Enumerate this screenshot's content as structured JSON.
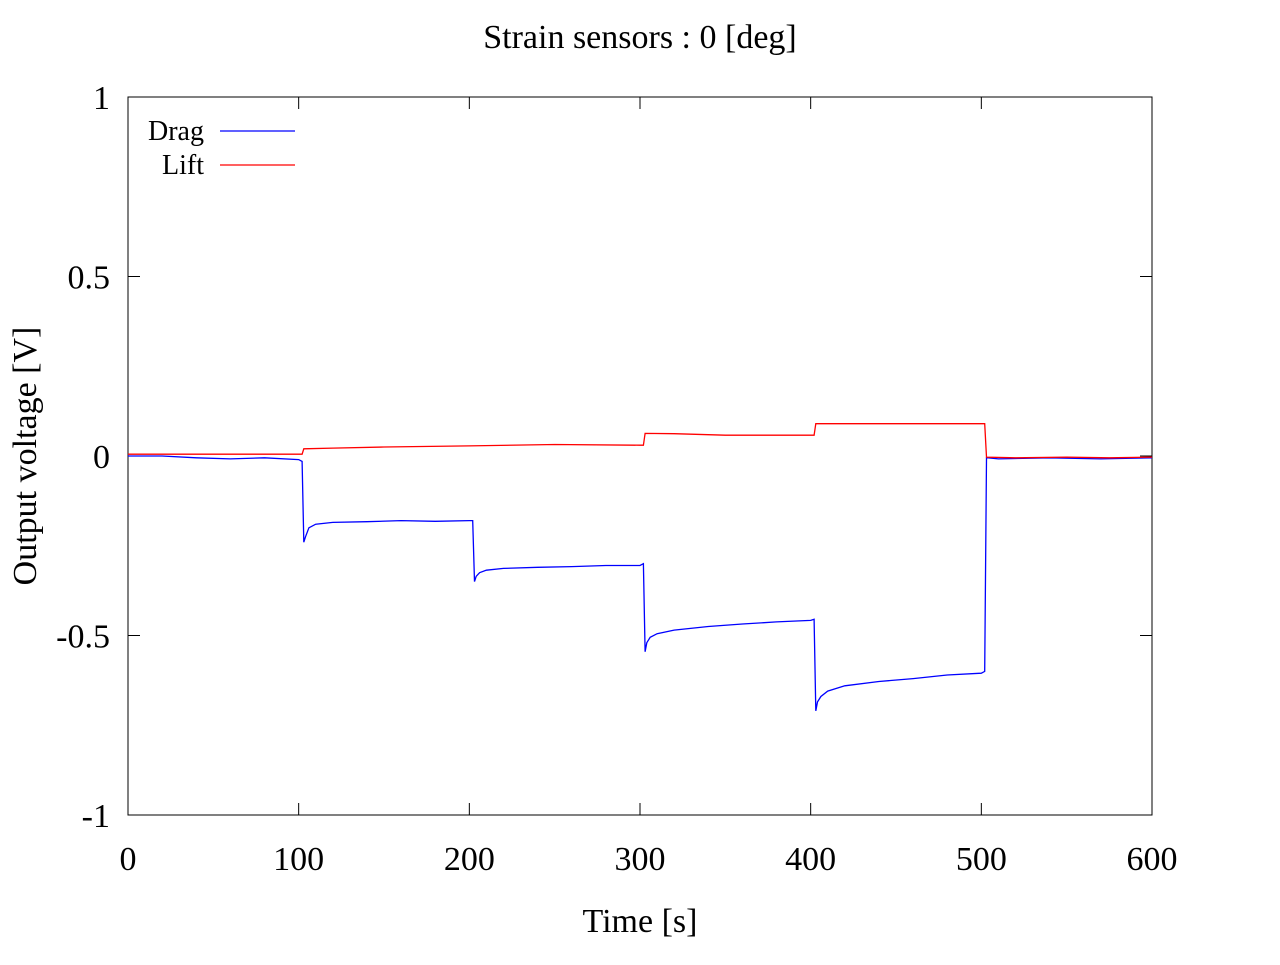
{
  "chart_data": {
    "type": "line",
    "title": "Strain sensors : 0 [deg]",
    "xlabel": "Time [s]",
    "ylabel": "Output voltage [V]",
    "xlim": [
      0,
      600
    ],
    "ylim": [
      -1,
      1
    ],
    "xticks": [
      "0",
      "100",
      "200",
      "300",
      "400",
      "500",
      "600"
    ],
    "yticks": [
      "1",
      "0.5",
      "0",
      "-0.5",
      "-1"
    ],
    "grid": false,
    "legend_position": "top-left",
    "series": [
      {
        "name": "Drag",
        "color": "#0000ff",
        "x": [
          0,
          20,
          40,
          60,
          80,
          100,
          102,
          103,
          104,
          106,
          110,
          120,
          140,
          160,
          180,
          200,
          202,
          203,
          204,
          206,
          210,
          220,
          240,
          260,
          280,
          300,
          302,
          303,
          304,
          306,
          310,
          320,
          340,
          360,
          380,
          400,
          402,
          403,
          404,
          406,
          410,
          420,
          440,
          460,
          480,
          500,
          502,
          503,
          504,
          510,
          540,
          570,
          600
        ],
        "y": [
          0.0,
          0.0,
          -0.005,
          -0.008,
          -0.005,
          -0.01,
          -0.015,
          -0.24,
          -0.225,
          -0.2,
          -0.19,
          -0.185,
          -0.183,
          -0.18,
          -0.182,
          -0.18,
          -0.18,
          -0.35,
          -0.335,
          -0.325,
          -0.318,
          -0.313,
          -0.31,
          -0.308,
          -0.305,
          -0.305,
          -0.3,
          -0.545,
          -0.52,
          -0.505,
          -0.495,
          -0.485,
          -0.475,
          -0.468,
          -0.462,
          -0.458,
          -0.455,
          -0.71,
          -0.685,
          -0.67,
          -0.655,
          -0.64,
          -0.628,
          -0.62,
          -0.61,
          -0.605,
          -0.6,
          -0.005,
          -0.005,
          -0.008,
          -0.005,
          -0.008,
          -0.005
        ]
      },
      {
        "name": "Lift",
        "color": "#ff0000",
        "x": [
          0,
          50,
          100,
          102,
          103,
          120,
          150,
          200,
          250,
          300,
          302,
          303,
          320,
          350,
          400,
          402,
          403,
          450,
          500,
          502,
          503,
          520,
          550,
          575,
          600
        ],
        "y": [
          0.005,
          0.005,
          0.005,
          0.005,
          0.02,
          0.022,
          0.025,
          0.028,
          0.032,
          0.03,
          0.03,
          0.063,
          0.062,
          0.058,
          0.058,
          0.058,
          0.09,
          0.09,
          0.09,
          0.09,
          -0.003,
          -0.005,
          -0.003,
          -0.005,
          -0.003
        ]
      }
    ]
  }
}
